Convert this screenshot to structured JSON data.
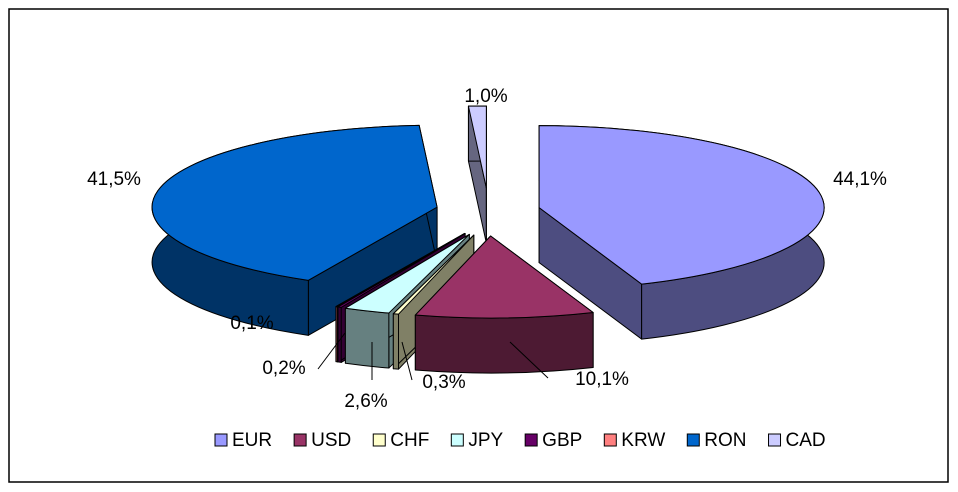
{
  "chart_data": {
    "type": "pie",
    "categories": [
      "EUR",
      "USD",
      "CHF",
      "JPY",
      "GBP",
      "KRW",
      "RON",
      "CAD"
    ],
    "values": [
      44.1,
      10.1,
      0.3,
      2.6,
      0.2,
      0.1,
      41.5,
      1.0
    ],
    "value_labels": [
      "44,1%",
      "10,1%",
      "0,3%",
      "2,6%",
      "0,2%",
      "0,1%",
      "41,5%",
      "1,0%"
    ],
    "colors": [
      "#9999ff",
      "#993366",
      "#ffffcc",
      "#ccffff",
      "#660066",
      "#ff8080",
      "#0066cc",
      "#ccccff"
    ],
    "legend": "bottom"
  }
}
